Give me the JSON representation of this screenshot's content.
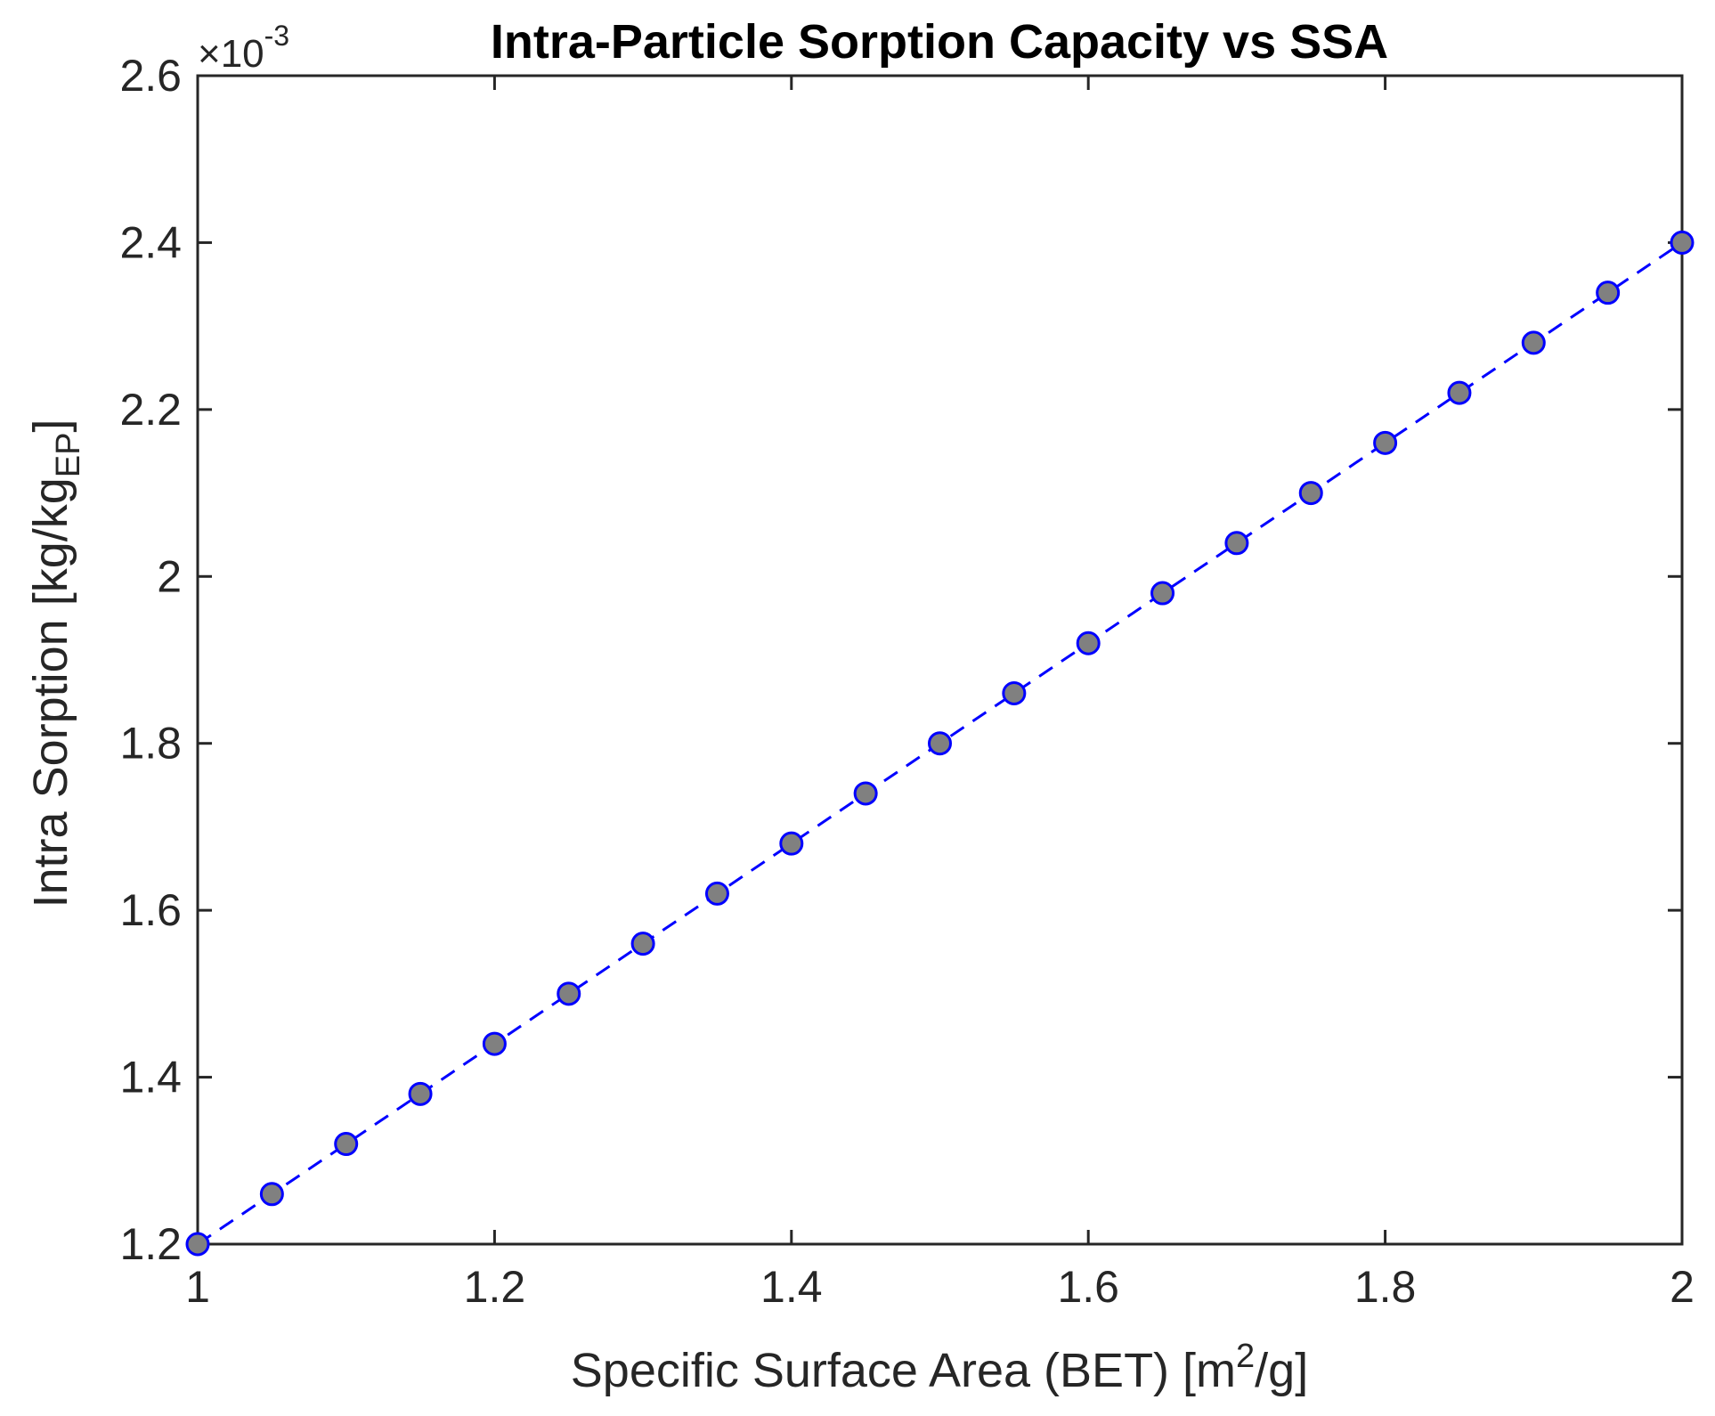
{
  "chart_data": {
    "type": "scatter",
    "title": "Intra-Particle Sorption Capacity vs SSA",
    "xlabel": {
      "main": "Specific Surface Area (BET)  [m",
      "sup": "2",
      "tail": "/g]"
    },
    "ylabel": {
      "main": "Intra Sorption [kg/kg",
      "sub": "EP",
      "tail": "]"
    },
    "y_exponent": {
      "prefix": "×10",
      "power": "-3"
    },
    "xlim": [
      1,
      2
    ],
    "ylim": [
      1.2,
      2.6
    ],
    "x_ticks": [
      1,
      1.2,
      1.4,
      1.6,
      1.8,
      2
    ],
    "x_tick_labels": [
      "1",
      "1.2",
      "1.4",
      "1.6",
      "1.8",
      "2"
    ],
    "y_ticks": [
      1.2,
      1.4,
      1.6,
      1.8,
      2.0,
      2.2,
      2.4,
      2.6
    ],
    "y_tick_labels": [
      "1.2",
      "1.4",
      "1.6",
      "1.8",
      "2",
      "2.2",
      "2.4",
      "2.6"
    ],
    "grid": false,
    "series": [
      {
        "name": "Intra Sorption",
        "line_style": "dashed",
        "line_color": "#0000ff",
        "marker_fill": "#808080",
        "marker_edge": "#0000ff",
        "x": [
          1.0,
          1.05,
          1.1,
          1.15,
          1.2,
          1.25,
          1.3,
          1.35,
          1.4,
          1.45,
          1.5,
          1.55,
          1.6,
          1.65,
          1.7,
          1.75,
          1.8,
          1.85,
          1.9,
          1.95,
          2.0
        ],
        "y": [
          1.2,
          1.26,
          1.32,
          1.38,
          1.44,
          1.5,
          1.56,
          1.62,
          1.68,
          1.74,
          1.8,
          1.86,
          1.92,
          1.98,
          2.04,
          2.1,
          2.16,
          2.22,
          2.28,
          2.34,
          2.4
        ]
      }
    ]
  }
}
